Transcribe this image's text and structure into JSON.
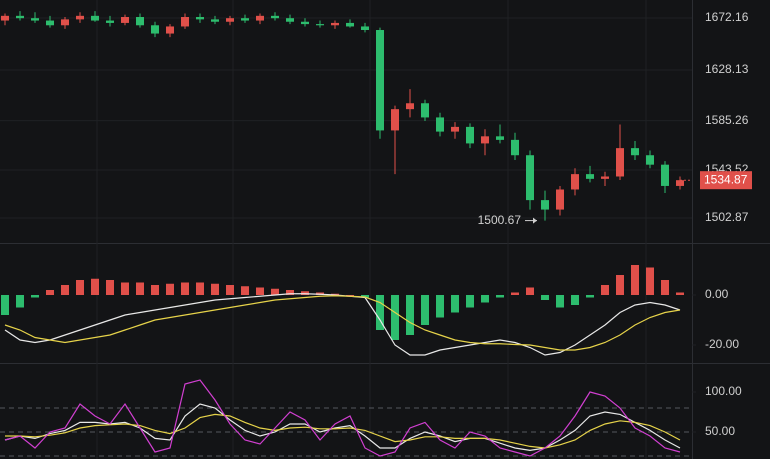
{
  "chart_data": [
    {
      "type": "candlestick",
      "open": [
        1670,
        1674,
        1672,
        1670,
        1666,
        1671,
        1674,
        1670,
        1668,
        1673,
        1666,
        1659,
        1665,
        1673,
        1671,
        1669,
        1672,
        1670,
        1674,
        1672,
        1669,
        1667,
        1666,
        1668,
        1665,
        1662,
        1577,
        1595,
        1600,
        1588,
        1576,
        1580,
        1566,
        1572,
        1569,
        1556,
        1518,
        1510,
        1527,
        1540,
        1536,
        1538,
        1562,
        1556,
        1548,
        1530
      ],
      "high": [
        1676,
        1678,
        1677,
        1674,
        1673,
        1677,
        1678,
        1674,
        1675,
        1676,
        1669,
        1667,
        1676,
        1676,
        1674,
        1674,
        1675,
        1676,
        1677,
        1675,
        1672,
        1670,
        1670,
        1671,
        1668,
        1664,
        1598,
        1612,
        1603,
        1592,
        1584,
        1583,
        1578,
        1582,
        1575,
        1560,
        1526,
        1530,
        1545,
        1547,
        1542,
        1582,
        1568,
        1560,
        1551,
        1538
      ],
      "low": [
        1666,
        1670,
        1668,
        1664,
        1663,
        1668,
        1669,
        1665,
        1666,
        1664,
        1656,
        1656,
        1663,
        1668,
        1667,
        1666,
        1668,
        1667,
        1670,
        1667,
        1665,
        1664,
        1663,
        1664,
        1660,
        1570,
        1540,
        1588,
        1585,
        1572,
        1570,
        1562,
        1556,
        1566,
        1552,
        1510,
        1500.67,
        1505,
        1522,
        1533,
        1530,
        1535,
        1552,
        1545,
        1524,
        1527
      ],
      "close": [
        1674,
        1672,
        1670,
        1666,
        1671,
        1674,
        1670,
        1668,
        1673,
        1666,
        1659,
        1665,
        1673,
        1671,
        1669,
        1672,
        1670,
        1674,
        1672,
        1669,
        1667,
        1666,
        1668,
        1665,
        1662,
        1577,
        1595,
        1600,
        1588,
        1576,
        1580,
        1566,
        1572,
        1569,
        1556,
        1518,
        1510,
        1527,
        1540,
        1536,
        1538,
        1562,
        1556,
        1548,
        1530,
        1534.87
      ],
      "up_color": "#e0504a",
      "down_color": "#2dbd6e",
      "ylim": [
        1481.7,
        1687.4
      ],
      "yticks": [
        1672.16,
        1628.13,
        1585.26,
        1543.52,
        1502.87
      ],
      "last_price": 1534.87,
      "low_marker": 1500.67,
      "grid": true
    },
    {
      "type": "macd",
      "histogram": [
        -8,
        -5,
        -1,
        2,
        4,
        6,
        6.5,
        6,
        5,
        5,
        4,
        4.5,
        5,
        5,
        4.5,
        4,
        3.5,
        3,
        2.5,
        2,
        1.5,
        1,
        0.5,
        0,
        -1,
        -14,
        -18,
        -16,
        -12,
        -9,
        -7,
        -5,
        -3,
        -1,
        1,
        3,
        -2,
        -5,
        -4,
        -1,
        4,
        8,
        12,
        11,
        6,
        1
      ],
      "up_color": "#e0504a",
      "down_color": "#2dbd6e",
      "lines": [
        {
          "color": "#e8e8e8",
          "values": [
            -14,
            -18,
            -19,
            -18,
            -16,
            -14,
            -12,
            -10,
            -8,
            -7,
            -6,
            -5,
            -4,
            -3,
            -2,
            -1.5,
            -1,
            -0.5,
            0,
            0.5,
            0.5,
            0.3,
            0,
            -0.5,
            -1,
            -10,
            -20,
            -24,
            -24,
            -22,
            -21,
            -20,
            -19,
            -18,
            -19,
            -21,
            -24,
            -23,
            -20,
            -16,
            -12,
            -7,
            -4,
            -3,
            -4,
            -6
          ]
        },
        {
          "color": "#e6d34a",
          "values": [
            -12,
            -14,
            -17,
            -18,
            -19,
            -18,
            -17,
            -16,
            -14,
            -12,
            -10,
            -9,
            -8,
            -7,
            -6,
            -5,
            -4,
            -3,
            -2,
            -1.5,
            -1,
            -0.5,
            -0.3,
            -0.5,
            -0.8,
            -3,
            -7,
            -11,
            -14,
            -16,
            -18,
            -19,
            -19.5,
            -19.5,
            -19.8,
            -20,
            -21,
            -22,
            -22,
            -21,
            -19,
            -16,
            -12,
            -9,
            -7,
            -6
          ]
        }
      ],
      "ylim": [
        -27.2,
        20.8
      ],
      "yticks": [
        {
          "value": 0,
          "label": "0.00"
        },
        {
          "value": -20,
          "label": "-20.00"
        }
      ]
    },
    {
      "type": "line",
      "series": [
        {
          "color": "#e8e8e8",
          "values": [
            40,
            45,
            42,
            48,
            52,
            62,
            62,
            60,
            62,
            55,
            42,
            40,
            70,
            85,
            80,
            65,
            52,
            45,
            50,
            60,
            60,
            50,
            55,
            58,
            45,
            30,
            30,
            42,
            50,
            45,
            38,
            42,
            42,
            36,
            30,
            27,
            30,
            40,
            52,
            70,
            75,
            72,
            62,
            52,
            40,
            30
          ]
        },
        {
          "color": "#e6d34a",
          "values": [
            45,
            45,
            44,
            46,
            49,
            55,
            58,
            59,
            60,
            58,
            52,
            48,
            55,
            68,
            72,
            70,
            62,
            55,
            52,
            55,
            56,
            54,
            54,
            55,
            52,
            45,
            38,
            40,
            44,
            44,
            42,
            42,
            42,
            40,
            36,
            32,
            30,
            34,
            40,
            52,
            60,
            64,
            62,
            58,
            50,
            40
          ]
        },
        {
          "color": "#d13fd1",
          "values": [
            40,
            45,
            30,
            50,
            55,
            85,
            70,
            60,
            85,
            55,
            25,
            30,
            110,
            115,
            90,
            60,
            40,
            35,
            55,
            75,
            65,
            40,
            60,
            70,
            30,
            20,
            25,
            55,
            62,
            40,
            30,
            50,
            45,
            30,
            25,
            20,
            30,
            45,
            70,
            100,
            95,
            80,
            55,
            45,
            30,
            25
          ]
        }
      ],
      "reference_lines": [
        80,
        50,
        20
      ],
      "ylim": [
        16.25,
        136.25
      ],
      "yticks": [
        {
          "value": 100,
          "label": "100.00"
        },
        {
          "value": 50,
          "label": "50.00"
        }
      ]
    }
  ]
}
